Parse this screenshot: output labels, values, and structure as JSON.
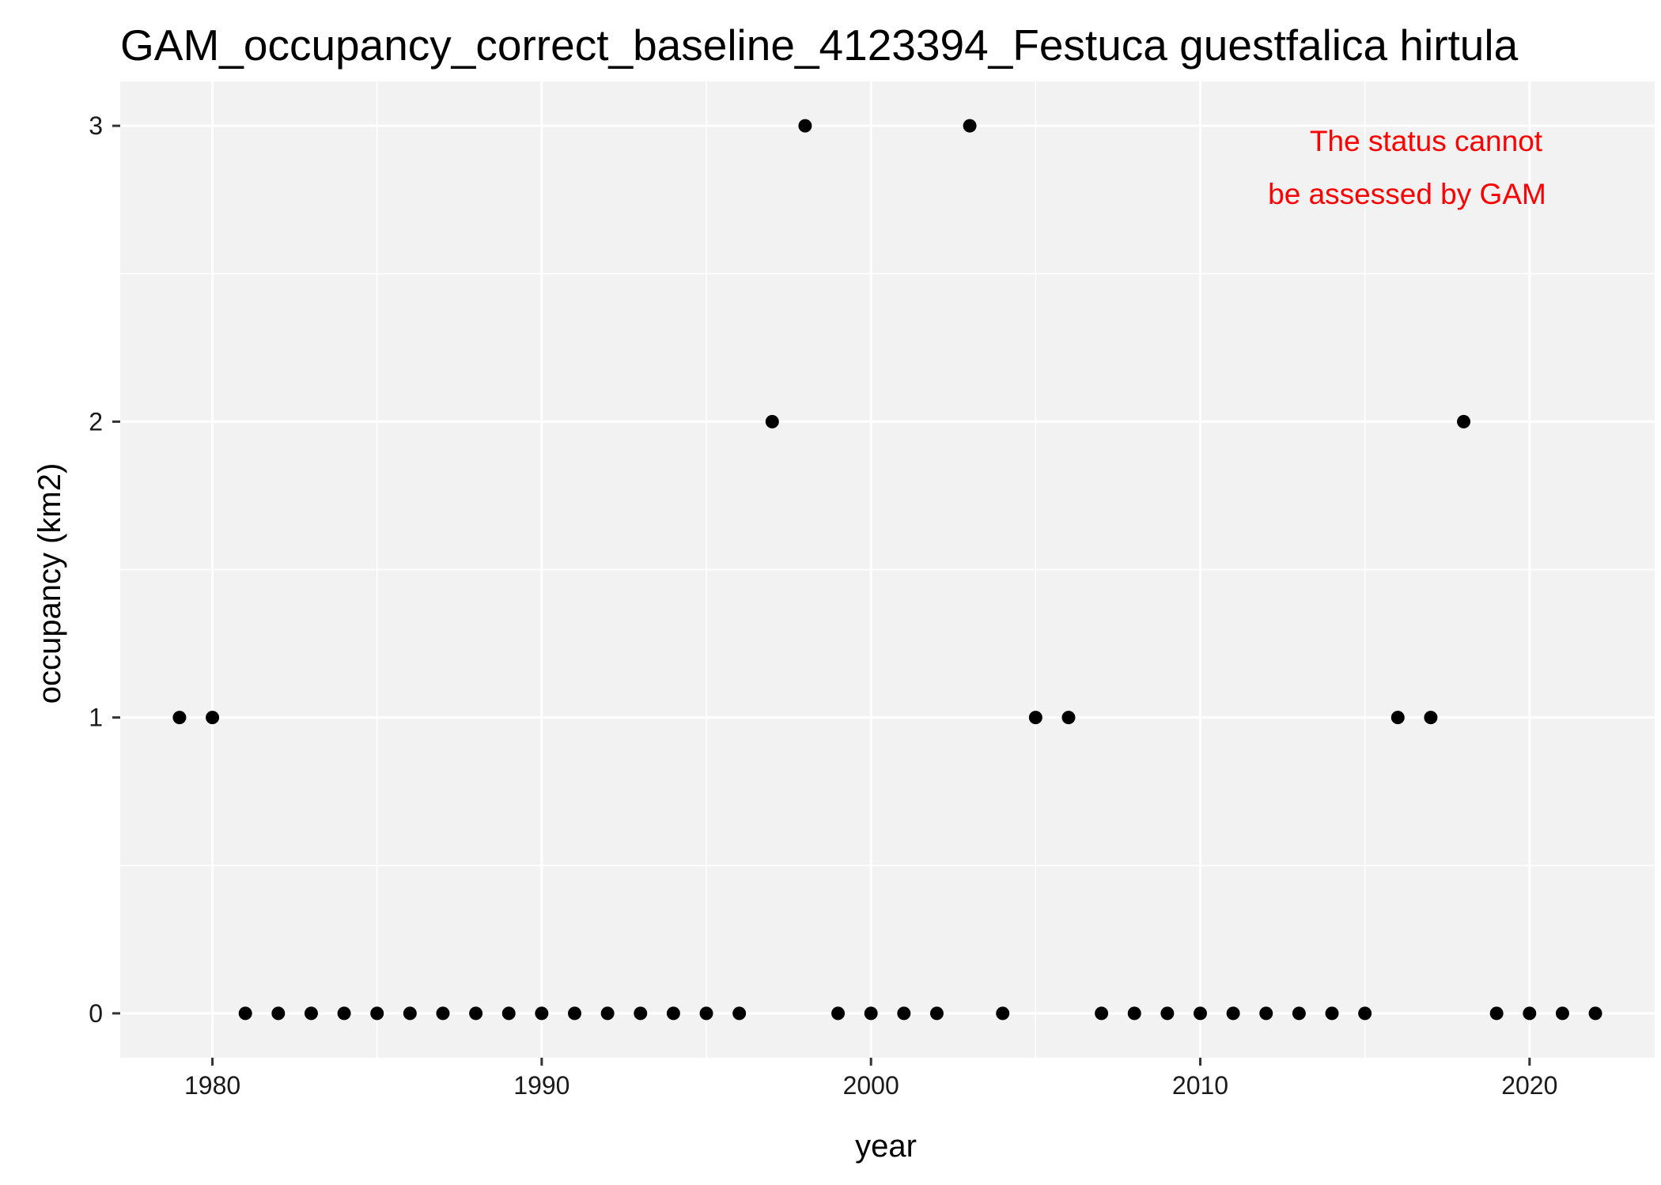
{
  "chart_data": {
    "type": "scatter",
    "title": "GAM_occupancy_correct_baseline_4123394_Festuca guestfalica hirtula",
    "xlabel": "year",
    "ylabel": "occupancy (km2)",
    "xlim": [
      1977.2,
      2023.8
    ],
    "ylim": [
      -0.15,
      3.15
    ],
    "x_ticks": [
      1980,
      1990,
      2000,
      2010,
      2020
    ],
    "x_tick_labels": [
      "1980",
      "1990",
      "2000",
      "2010",
      "2020"
    ],
    "y_ticks": [
      0,
      1,
      2,
      3
    ],
    "y_tick_labels": [
      "0",
      "1",
      "2",
      "3"
    ],
    "grid": true,
    "annotation": {
      "lines": [
        "The status cannot",
        "be assessed by GAM"
      ],
      "color": "#ff0000"
    },
    "series": [
      {
        "color": "#000000",
        "points": [
          [
            1979,
            1
          ],
          [
            1980,
            1
          ],
          [
            1981,
            0
          ],
          [
            1982,
            0
          ],
          [
            1983,
            0
          ],
          [
            1984,
            0
          ],
          [
            1985,
            0
          ],
          [
            1986,
            0
          ],
          [
            1987,
            0
          ],
          [
            1988,
            0
          ],
          [
            1989,
            0
          ],
          [
            1990,
            0
          ],
          [
            1991,
            0
          ],
          [
            1992,
            0
          ],
          [
            1993,
            0
          ],
          [
            1994,
            0
          ],
          [
            1995,
            0
          ],
          [
            1996,
            0
          ],
          [
            1997,
            2
          ],
          [
            1998,
            3
          ],
          [
            1999,
            0
          ],
          [
            2000,
            0
          ],
          [
            2001,
            0
          ],
          [
            2002,
            0
          ],
          [
            2003,
            3
          ],
          [
            2004,
            0
          ],
          [
            2005,
            1
          ],
          [
            2006,
            1
          ],
          [
            2007,
            0
          ],
          [
            2008,
            0
          ],
          [
            2009,
            0
          ],
          [
            2010,
            0
          ],
          [
            2011,
            0
          ],
          [
            2012,
            0
          ],
          [
            2013,
            0
          ],
          [
            2014,
            0
          ],
          [
            2015,
            0
          ],
          [
            2016,
            1
          ],
          [
            2017,
            1
          ],
          [
            2018,
            2
          ],
          [
            2019,
            0
          ],
          [
            2020,
            0
          ],
          [
            2021,
            0
          ],
          [
            2022,
            0
          ]
        ]
      }
    ]
  },
  "colors": {
    "panel_background": "#f2f2f2",
    "grid_major": "#ffffff",
    "grid_minor": "#ffffff",
    "point": "#000000",
    "annotation": "#ff0000"
  }
}
